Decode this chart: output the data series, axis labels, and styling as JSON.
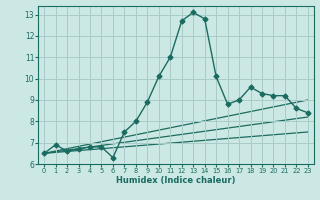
{
  "xlabel": "Humidex (Indice chaleur)",
  "bg_color": "#cce8e4",
  "grid_color": "#a8ccc8",
  "line_color": "#1a6b60",
  "xlim": [
    -0.5,
    23.5
  ],
  "ylim": [
    6,
    13.4
  ],
  "xticks": [
    0,
    1,
    2,
    3,
    4,
    5,
    6,
    7,
    8,
    9,
    10,
    11,
    12,
    13,
    14,
    15,
    16,
    17,
    18,
    19,
    20,
    21,
    22,
    23
  ],
  "yticks": [
    6,
    7,
    8,
    9,
    10,
    11,
    12,
    13
  ],
  "main_x": [
    0,
    1,
    2,
    3,
    4,
    5,
    6,
    7,
    8,
    9,
    10,
    11,
    12,
    13,
    14,
    15,
    16,
    17,
    18,
    19,
    20,
    21,
    22,
    23
  ],
  "main_y": [
    6.5,
    6.9,
    6.6,
    6.7,
    6.8,
    6.8,
    6.3,
    7.5,
    8.0,
    8.9,
    10.1,
    11.0,
    12.7,
    13.1,
    12.8,
    10.1,
    8.8,
    9.0,
    9.6,
    9.3,
    9.2,
    9.2,
    8.6,
    8.4
  ],
  "trend_lines": [
    {
      "x": [
        0,
        23
      ],
      "y": [
        6.5,
        7.5
      ]
    },
    {
      "x": [
        0,
        23
      ],
      "y": [
        6.5,
        8.2
      ]
    },
    {
      "x": [
        0,
        23
      ],
      "y": [
        6.5,
        9.0
      ]
    }
  ]
}
